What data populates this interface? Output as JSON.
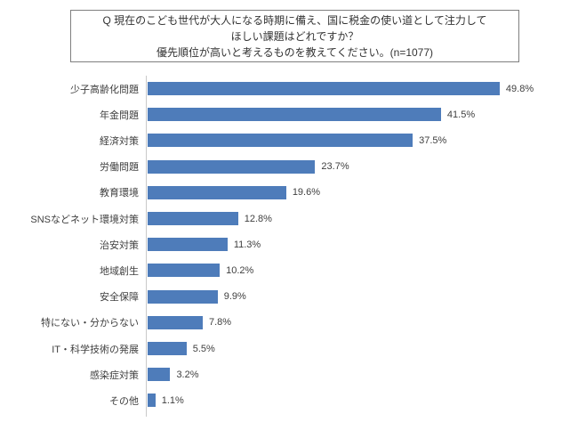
{
  "title_box": {
    "line1": "Q 現在のこども世代が大人になる時期に備え、国に税金の使い道として注力して",
    "line2": "ほしい課題はどれですか？",
    "line3": "優先順位が高いと考えるものを教えてください。(n=1077)"
  },
  "colors": {
    "bar": "#4e7cba",
    "axis": "#c9c9c9",
    "text": "#3f3f3f",
    "box_border": "#7f7f7f"
  },
  "chart_data": {
    "type": "bar",
    "orientation": "horizontal",
    "categories": [
      "少子高齢化問題",
      "年金問題",
      "経済対策",
      "労働問題",
      "教育環境",
      "SNSなどネット環境対策",
      "治安対策",
      "地域創生",
      "安全保障",
      "特にない・分からない",
      "IT・科学技術の発展",
      "感染症対策",
      "その他"
    ],
    "values": [
      49.8,
      41.5,
      37.5,
      23.7,
      19.6,
      12.8,
      11.3,
      10.2,
      9.9,
      7.8,
      5.5,
      3.2,
      1.1
    ],
    "value_suffix": "%",
    "title": "",
    "xlabel": "",
    "ylabel": "",
    "xlim": [
      0,
      55
    ],
    "grid": false,
    "legend": false,
    "n": 1077
  }
}
